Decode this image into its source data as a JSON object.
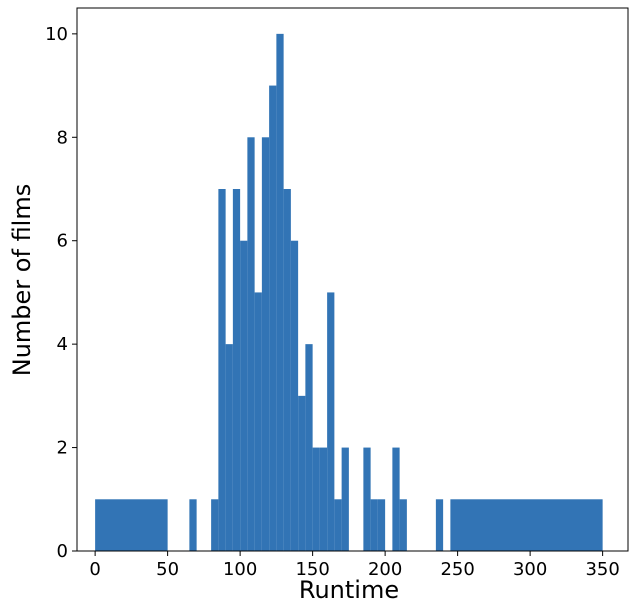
{
  "chart_data": {
    "type": "histogram",
    "x_label": "Runtime",
    "y_label": "Number of films",
    "color": "#3274b5",
    "bins": [
      0,
      50,
      55,
      60,
      65,
      70,
      75,
      80,
      85,
      90,
      95,
      100,
      105,
      110,
      115,
      120,
      125,
      130,
      135,
      140,
      145,
      150,
      155,
      160,
      165,
      170,
      175,
      180,
      185,
      190,
      195,
      200,
      205,
      210,
      215,
      220,
      225,
      230,
      235,
      240,
      245,
      350
    ],
    "counts": [
      1,
      0,
      0,
      0,
      1,
      0,
      0,
      1,
      7,
      4,
      7,
      6,
      8,
      5,
      8,
      9,
      10,
      7,
      6,
      3,
      4,
      2,
      2,
      5,
      1,
      2,
      0,
      0,
      2,
      1,
      1,
      0,
      2,
      1,
      0,
      0,
      0,
      0,
      1,
      0,
      1
    ],
    "xlim": [
      -12.5,
      367.5
    ],
    "xticks": [
      0,
      50,
      100,
      150,
      200,
      250,
      300,
      350
    ],
    "ylim": [
      0,
      10.5
    ],
    "yticks": [
      0,
      2,
      4,
      6,
      8,
      10
    ]
  }
}
